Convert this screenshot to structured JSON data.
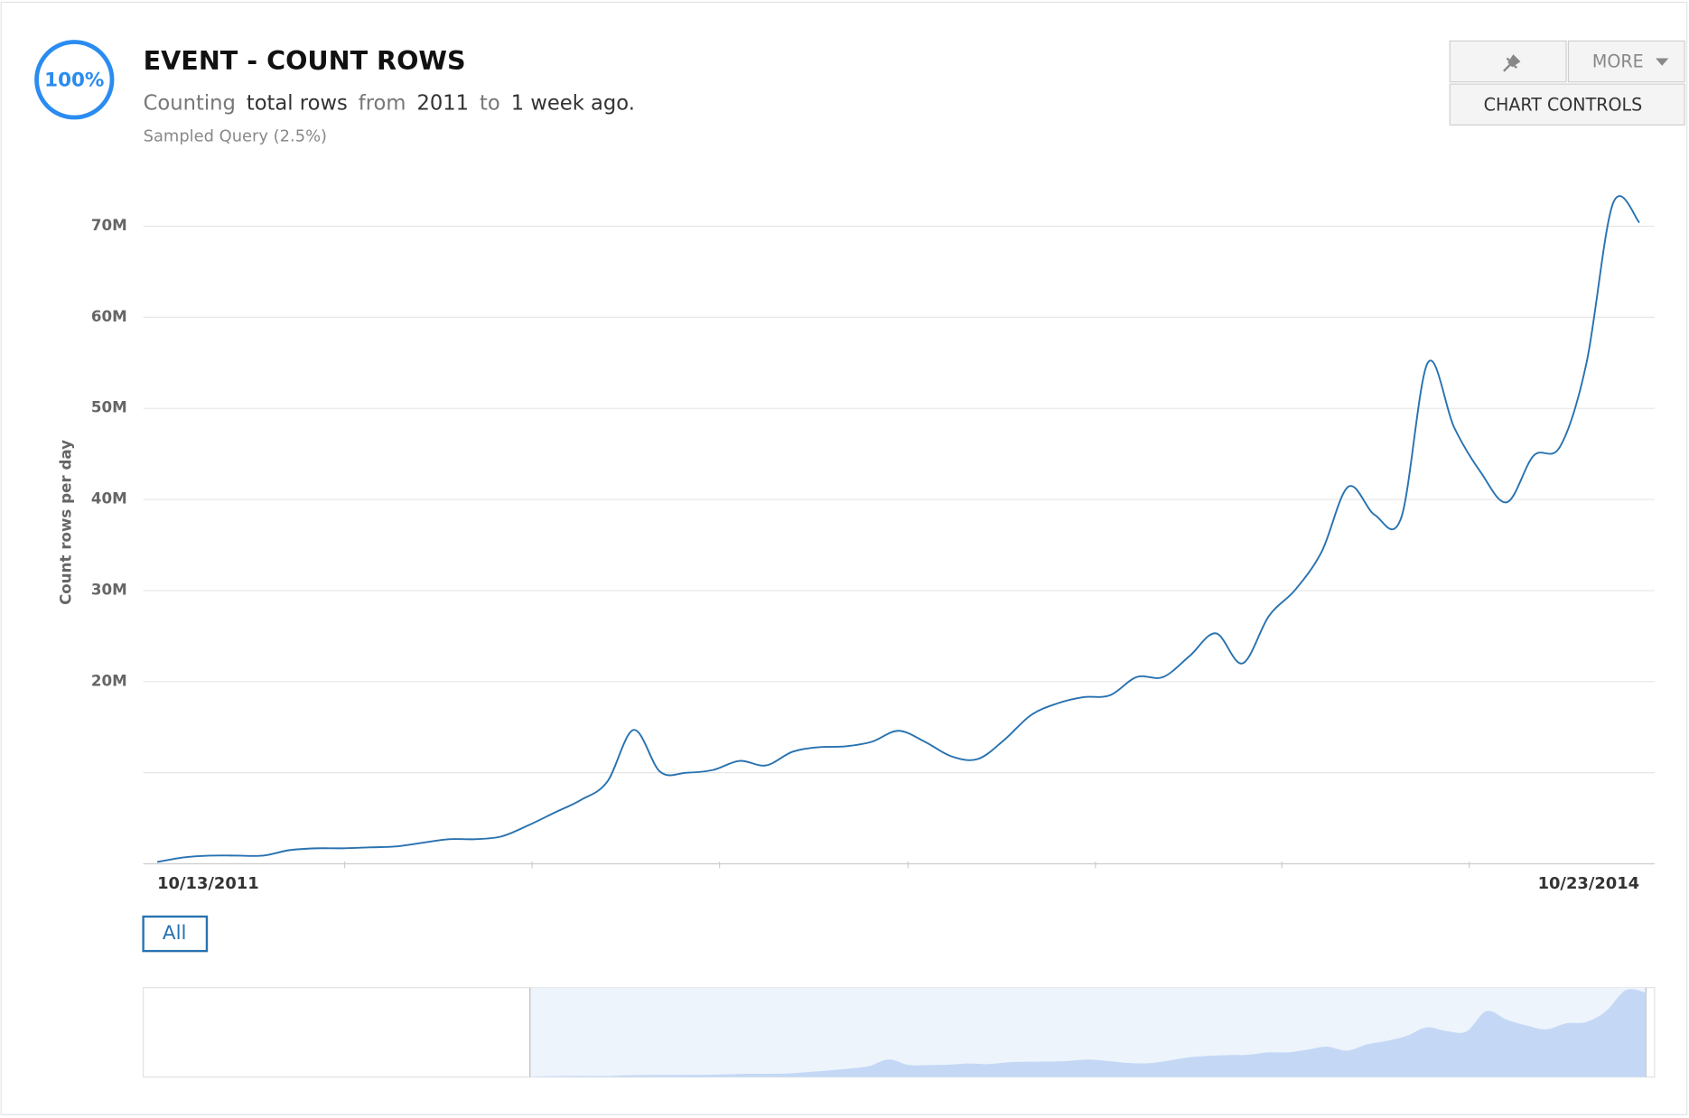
{
  "header": {
    "badge": "100%",
    "title": "EVENT - COUNT ROWS",
    "subtitle": [
      "Counting",
      "total rows",
      "from",
      "2011",
      "to",
      "1 week ago."
    ],
    "note": "Sampled Query (2.5%)",
    "buttons": {
      "more": "MORE",
      "chart_controls": "CHART CONTROLS"
    },
    "range_button": "All"
  },
  "chart_data": {
    "type": "line",
    "ylabel": "Count rows per day",
    "categories": [
      "10/13/2011",
      null,
      null,
      null,
      null,
      null,
      null,
      null,
      null,
      null,
      null,
      null,
      null,
      null,
      null,
      null,
      null,
      null,
      null,
      null,
      null,
      null,
      null,
      null,
      null,
      null,
      null,
      null,
      null,
      null,
      null,
      null,
      null,
      null,
      null,
      null,
      null,
      null,
      null,
      null,
      null,
      null,
      null,
      null,
      null,
      null,
      null,
      null,
      null,
      null,
      null,
      null,
      null,
      null,
      null,
      null,
      "10/23/2014"
    ],
    "series": [
      {
        "name": "Count rows",
        "color": "#2872b0",
        "values": [
          0.2,
          0.7,
          0.9,
          0.9,
          0.9,
          1.5,
          1.7,
          1.7,
          1.8,
          1.9,
          2.3,
          2.7,
          2.7,
          3.0,
          4.2,
          5.6,
          7.0,
          9.0,
          14.7,
          10.1,
          10.0,
          10.3,
          11.3,
          10.8,
          12.3,
          12.8,
          12.9,
          13.4,
          14.6,
          13.4,
          11.8,
          11.5,
          13.6,
          16.3,
          17.6,
          18.3,
          18.5,
          20.5,
          20.5,
          22.8,
          25.3,
          22.0,
          27.2,
          30.1,
          34.3,
          41.4,
          38.3,
          38.0,
          55.0,
          47.9,
          43.0,
          39.7,
          44.8,
          45.8,
          55.0,
          72.5,
          70.4
        ]
      }
    ],
    "ylim": [
      0,
      70
    ],
    "yticks": [
      {
        "value": 10
      },
      {
        "value": 20,
        "label": "20M"
      },
      {
        "value": 30,
        "label": "30M"
      },
      {
        "value": 40,
        "label": "40M"
      },
      {
        "value": 50,
        "label": "50M"
      },
      {
        "value": 60,
        "label": "60M"
      },
      {
        "value": 70,
        "label": "70M"
      }
    ],
    "grid": true
  }
}
